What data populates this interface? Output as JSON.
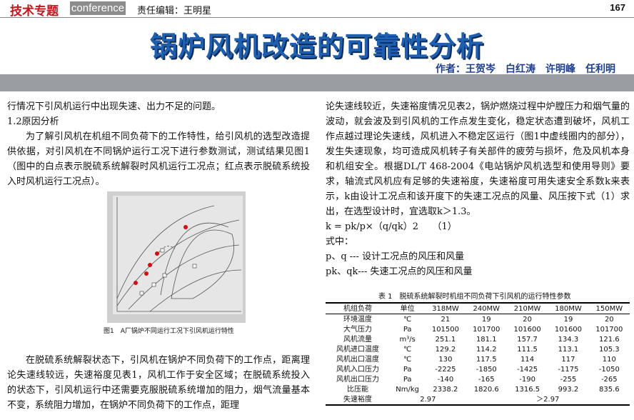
{
  "header": {
    "section": "技术专题",
    "tag": "conference",
    "editor": "责任编辑：王明星",
    "page": "167"
  },
  "title": "锅炉风机改造的可靠性分析",
  "authors": "作者：王贺岑　白红涛　许明峰　任利明",
  "left": {
    "paragraphs": [
      "行情况下引风机运行中出现失速、出力不足的问题。",
      "1.2原因分析",
      "为了解引风机在机组不同负荷下的工作特性，给引风机的选型改造提供依据，对引风机在不同锅炉运行工况下进行参数测试，测试结果见图1（图中的白点表示脱硫系统解裂时风机运行工况点；红点表示脱硫系统投入时风机运行工况点）。"
    ],
    "figure_caption": "图1　A厂锅炉不同运行工况下引风机运行特性",
    "paragraph_after": "在脱硫系统解裂状态下，引风机在锅炉不同负荷下的工作点，距离理论失速线较远，失速裕度见表1，风机工作于安全区域；在脱硫系统投入的状态下，引风机运行中还需要克服脱硫系统增加的阻力，烟气流量基本不变，系统阻力增加，在锅炉不同负荷下的工作点，距理"
  },
  "right": {
    "paragraph": "论失速线较近，失速裕度情况见表2，锅炉燃烧过程中炉膛压力和烟气量的波动，就会波及到引风机的工作点发生变化，稳定状态遭到破坏，风机工作点越过理论失速线，风机进入不稳定区运行（图1中虚线圈内的部分），发生失速现象，均可造成风机转子有关部件的疲劳与损坏，危及风机本身和机组安全。根据DL/T 468-2004《电站锅炉风机选型和使用导则》要求，轴流式风机应有足够的失速裕度，失速裕度可用失速安全系数k来表示，k由设计工况点和该开度下的失速工况点的风量、风压按下式（1）求出，在选型设计时，宜选取k＞1.3。",
    "formula": "k = pk/p×（q/qk）2　　（1）",
    "where": "式中：",
    "defs": [
      "p、q --- 设计工况点的风压和风量",
      "pk、qk--- 失速工况点的风压和风量"
    ]
  },
  "table": {
    "title": "表 1　脱硫系统解裂时机组不同负荷下引风机的运行特性参数",
    "header": [
      "机组负荷",
      "单位",
      "318MW",
      "240MW",
      "210MW",
      "180MW",
      "150MW"
    ],
    "rows": [
      [
        "环境温度",
        "℃",
        "21",
        "19",
        "20",
        "19",
        "20"
      ],
      [
        "大气压力",
        "Pa",
        "101500",
        "101700",
        "101600",
        "101600",
        "101700"
      ],
      [
        "风机流量",
        "m³/s",
        "251.1",
        "181.1",
        "157.7",
        "134.3",
        "121.6"
      ],
      [
        "风机进口温度",
        "℃",
        "129.2",
        "114.2",
        "111.5",
        "113.1",
        "105.3"
      ],
      [
        "风机出口温度",
        "℃",
        "130",
        "117.5",
        "114",
        "117",
        "110"
      ],
      [
        "风机入口压力",
        "Pa",
        "-2225",
        "-1850",
        "-1425",
        "-1175",
        "-1050"
      ],
      [
        "风机出口压力",
        "Pa",
        "-140",
        "-165",
        "-190",
        "-255",
        "-265"
      ],
      [
        "比压能",
        "Nm/kg",
        "2338.2",
        "1820.6",
        "1316.5",
        "993.2",
        "835.6"
      ]
    ],
    "last_row": [
      "失速裕度",
      "2.97",
      "＞2.97"
    ]
  }
}
